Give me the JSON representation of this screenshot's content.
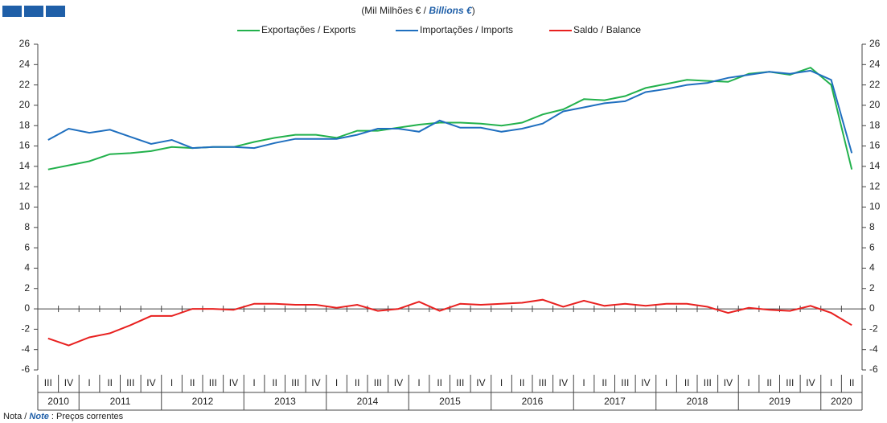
{
  "chart_data": {
    "type": "line",
    "subtitle": {
      "pt": "(Mil Milhões € / ",
      "en": "Billions €",
      "close": ")"
    },
    "note": {
      "pt": "Nota / ",
      "en": "Note",
      "text": " : Preços correntes"
    },
    "categories": [
      "III",
      "IV",
      "I",
      "II",
      "III",
      "IV",
      "I",
      "II",
      "III",
      "IV",
      "I",
      "II",
      "III",
      "IV",
      "I",
      "II",
      "III",
      "IV",
      "I",
      "II",
      "III",
      "IV",
      "I",
      "II",
      "III",
      "IV",
      "I",
      "II",
      "III",
      "IV",
      "I",
      "II",
      "III",
      "IV",
      "I",
      "II",
      "III",
      "IV",
      "I",
      "II"
    ],
    "year_labels": [
      "2010",
      "2011",
      "2012",
      "2013",
      "2014",
      "2015",
      "2016",
      "2017",
      "2018",
      "2019",
      "2020"
    ],
    "series": [
      {
        "name": "Exportações / Exports",
        "color": "#22b14c",
        "values": [
          13.7,
          14.1,
          14.5,
          15.2,
          15.3,
          15.5,
          15.9,
          15.8,
          15.9,
          15.9,
          16.4,
          16.8,
          17.1,
          17.1,
          16.8,
          17.5,
          17.5,
          17.8,
          18.1,
          18.3,
          18.3,
          18.2,
          18.0,
          18.3,
          19.1,
          19.6,
          20.6,
          20.5,
          20.9,
          21.7,
          22.1,
          22.5,
          22.4,
          22.3,
          23.1,
          23.3,
          23.0,
          23.7,
          22.0,
          13.7
        ]
      },
      {
        "name": "Importações / Imports",
        "color": "#1f6fbf",
        "values": [
          16.6,
          17.7,
          17.3,
          17.6,
          16.9,
          16.2,
          16.6,
          15.8,
          15.9,
          15.9,
          15.8,
          16.3,
          16.7,
          16.7,
          16.7,
          17.1,
          17.7,
          17.7,
          17.4,
          18.5,
          17.8,
          17.8,
          17.4,
          17.7,
          18.2,
          19.4,
          19.8,
          20.2,
          20.4,
          21.3,
          21.6,
          22.0,
          22.2,
          22.7,
          23.0,
          23.3,
          23.1,
          23.4,
          22.5,
          15.3
        ]
      },
      {
        "name": "Saldo / Balance",
        "color": "#e8201f",
        "values": [
          -2.9,
          -3.6,
          -2.8,
          -2.4,
          -1.6,
          -0.7,
          -0.7,
          0.0,
          0.0,
          -0.1,
          0.5,
          0.5,
          0.4,
          0.4,
          0.1,
          0.4,
          -0.2,
          0.0,
          0.7,
          -0.2,
          0.5,
          0.4,
          0.5,
          0.6,
          0.9,
          0.2,
          0.8,
          0.3,
          0.5,
          0.3,
          0.5,
          0.5,
          0.2,
          -0.4,
          0.1,
          -0.1,
          -0.2,
          0.3,
          -0.4,
          -1.6
        ]
      }
    ],
    "ylim": [
      -6,
      26
    ],
    "yticks": [
      -6,
      -4,
      -2,
      0,
      2,
      4,
      6,
      8,
      10,
      12,
      14,
      16,
      18,
      20,
      22,
      24,
      26
    ],
    "y2lim": [
      -6,
      26
    ],
    "y2ticks": [
      -6,
      -4,
      -2,
      0,
      2,
      4,
      6,
      8,
      10,
      12,
      14,
      16,
      18,
      20,
      22,
      24,
      26
    ],
    "grid": false
  }
}
